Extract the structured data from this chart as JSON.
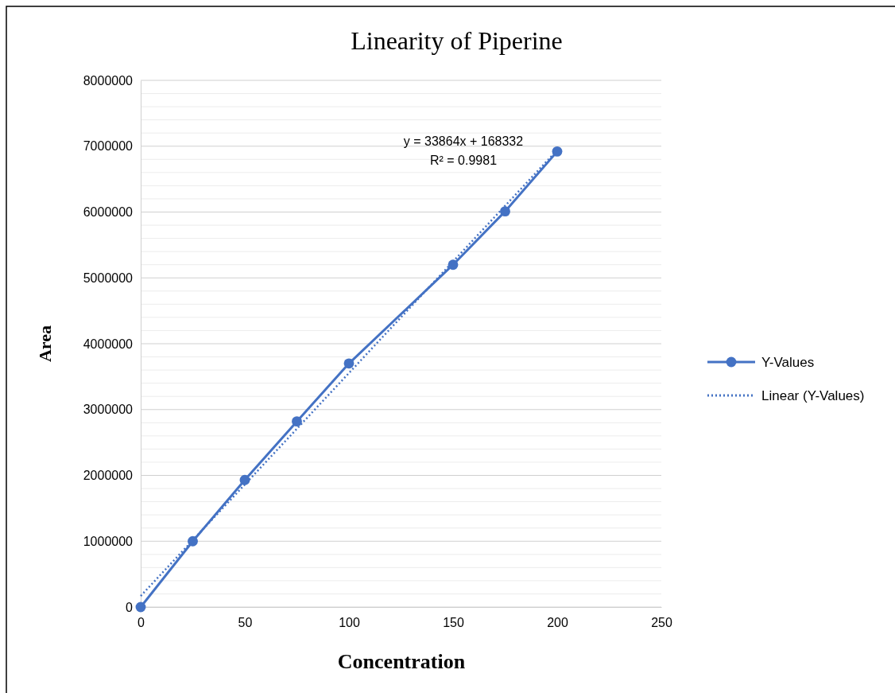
{
  "chart_data": {
    "type": "line",
    "title": "Linearity of Piperine",
    "xlabel": "Concentration",
    "ylabel": "Area",
    "x": [
      0,
      25,
      50,
      75,
      100,
      150,
      175,
      200
    ],
    "series": [
      {
        "name": "Y-Values",
        "color": "#4472c4",
        "values": [
          0,
          1000000,
          1930000,
          2820000,
          3700000,
          5200000,
          6010000,
          6920000
        ],
        "marker": "circle",
        "line_style": "solid"
      },
      {
        "name": "Linear (Y-Values)",
        "color": "#4472c4",
        "type": "line",
        "x": [
          0,
          200
        ],
        "values": [
          168332,
          6941132
        ],
        "marker": "none",
        "line_style": "dotted"
      }
    ],
    "xlim": [
      0,
      250
    ],
    "xticks": [
      0,
      50,
      100,
      150,
      200,
      250
    ],
    "ylim": [
      0,
      8000000
    ],
    "yticks": [
      0,
      1000000,
      2000000,
      3000000,
      4000000,
      5000000,
      6000000,
      7000000,
      8000000
    ],
    "grid": "y",
    "legend": "right",
    "annotations": [
      "y = 33864x + 168332",
      "R² = 0.9981"
    ]
  }
}
